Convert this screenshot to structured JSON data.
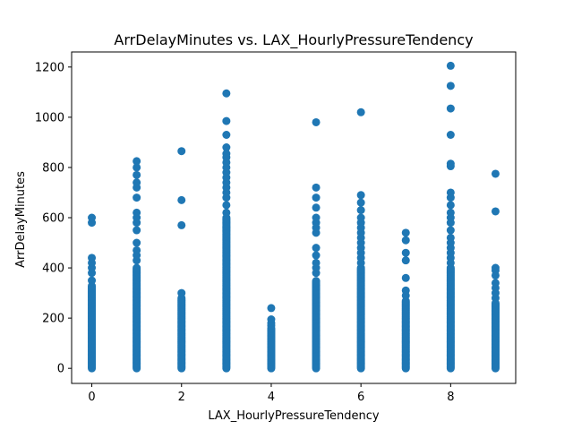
{
  "chart_data": {
    "type": "scatter",
    "title": "ArrDelayMinutes vs. LAX_HourlyPressureTendency",
    "xlabel": "LAX_HourlyPressureTendency",
    "ylabel": "ArrDelayMinutes",
    "xlim": [
      -0.45,
      9.45
    ],
    "ylim": [
      -60,
      1260
    ],
    "xticks": [
      0,
      2,
      4,
      6,
      8
    ],
    "yticks": [
      0,
      200,
      400,
      600,
      800,
      1000,
      1200
    ],
    "grid": false,
    "point_color": "#1f77b4",
    "series": [
      {
        "points": [
          {
            "x": 0,
            "dense_max": 330,
            "outliers": [
              350,
              380,
              400,
              420,
              440,
              580,
              600
            ]
          },
          {
            "x": 1,
            "dense_max": 400,
            "outliers": [
              430,
              450,
              470,
              500,
              550,
              580,
              600,
              620,
              680,
              720,
              740,
              770,
              800,
              825
            ]
          },
          {
            "x": 2,
            "dense_max": 280,
            "outliers": [
              300,
              570,
              670,
              865
            ]
          },
          {
            "x": 3,
            "dense_max": 600,
            "outliers": [
              620,
              650,
              680,
              700,
              720,
              740,
              760,
              780,
              800,
              820,
              840,
              855,
              880,
              930,
              985,
              1095
            ]
          },
          {
            "x": 4,
            "dense_max": 160,
            "outliers": [
              170,
              180,
              195,
              240
            ]
          },
          {
            "x": 5,
            "dense_max": 350,
            "outliers": [
              380,
              400,
              420,
              450,
              480,
              540,
              560,
              580,
              600,
              640,
              680,
              720,
              980
            ]
          },
          {
            "x": 6,
            "dense_max": 400,
            "outliers": [
              420,
              440,
              460,
              480,
              500,
              520,
              540,
              560,
              580,
              600,
              630,
              660,
              690,
              1020
            ]
          },
          {
            "x": 7,
            "dense_max": 270,
            "outliers": [
              290,
              310,
              360,
              430,
              460,
              510,
              540
            ]
          },
          {
            "x": 8,
            "dense_max": 400,
            "outliers": [
              420,
              440,
              460,
              480,
              500,
              520,
              550,
              580,
              600,
              620,
              650,
              680,
              700,
              805,
              815,
              930,
              1035,
              1125,
              1205
            ]
          },
          {
            "x": 9,
            "dense_max": 260,
            "outliers": [
              280,
              300,
              320,
              340,
              370,
              390,
              400,
              625,
              775
            ]
          }
        ]
      }
    ]
  }
}
